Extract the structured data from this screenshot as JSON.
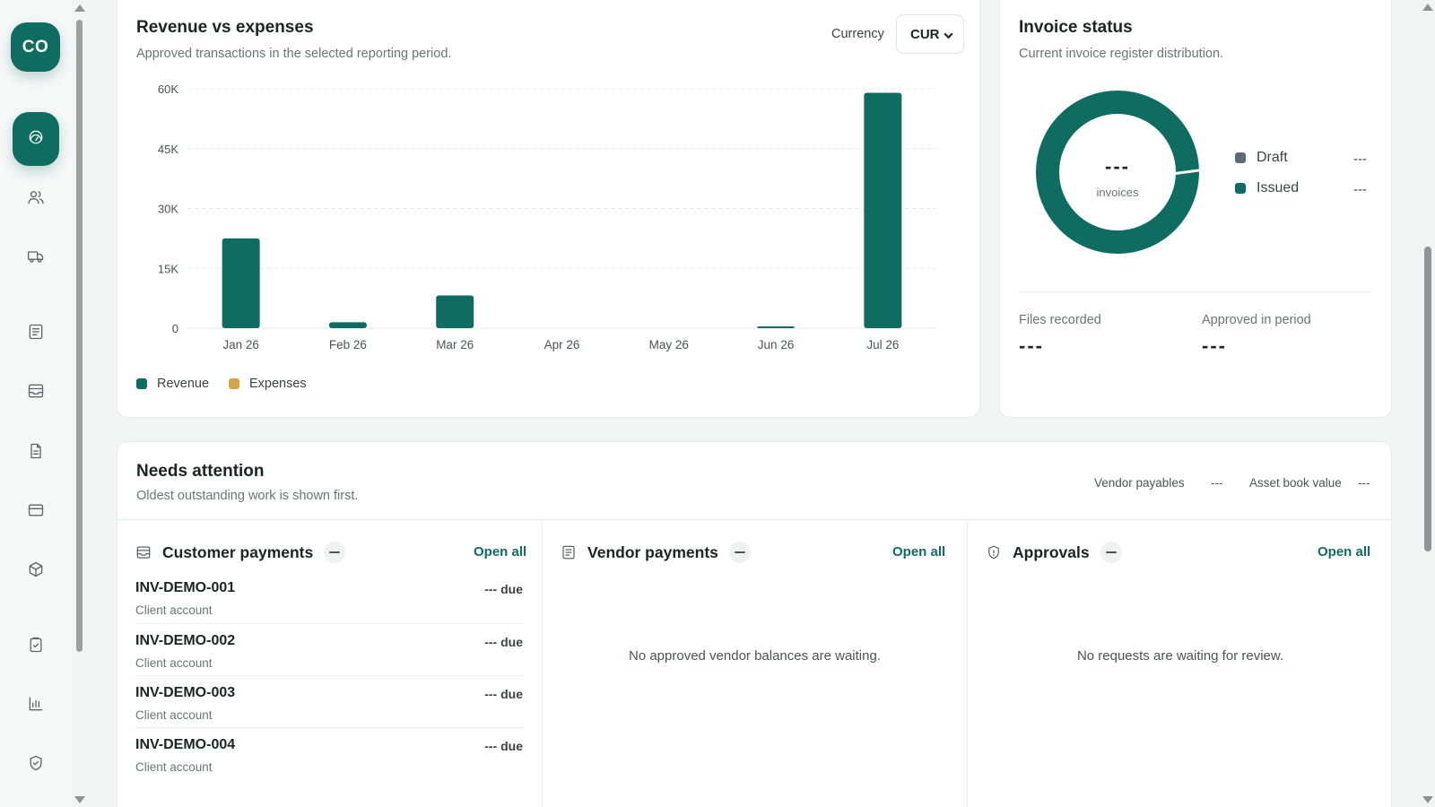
{
  "nav": {
    "brand": "CO",
    "items": [
      {
        "icon": "speedometer-icon",
        "active": true
      },
      {
        "icon": "users-icon",
        "active": false
      },
      {
        "icon": "truck-icon",
        "active": false
      },
      {
        "icon": "ledger-icon",
        "active": false
      },
      {
        "icon": "inbox-icon",
        "active": false
      },
      {
        "icon": "document-icon",
        "active": false
      },
      {
        "icon": "card-icon",
        "active": false
      },
      {
        "icon": "package-icon",
        "active": false
      },
      {
        "icon": "clipboard-check-icon",
        "active": false
      },
      {
        "icon": "bar-chart-icon",
        "active": false
      },
      {
        "icon": "shield-check-icon",
        "active": false
      }
    ]
  },
  "revenue": {
    "title": "Revenue vs expenses",
    "subtitle": "Approved transactions in the selected reporting period.",
    "currency_label": "Currency",
    "currency_value": "CUR",
    "legend": [
      {
        "label": "Revenue",
        "color": "#0f6c61"
      },
      {
        "label": "Expenses",
        "color": "#d6a548"
      }
    ]
  },
  "chart_data": {
    "type": "bar",
    "categories": [
      "Jan 26",
      "Feb 26",
      "Mar 26",
      "Apr 26",
      "May 26",
      "Jun 26",
      "Jul 26"
    ],
    "series": [
      {
        "name": "Revenue",
        "color": "#0f6c61",
        "values": [
          22500,
          1500,
          8200,
          0,
          0,
          400,
          59000
        ]
      },
      {
        "name": "Expenses",
        "color": "#d6a548",
        "values": [
          0,
          0,
          0,
          0,
          0,
          0,
          0
        ]
      }
    ],
    "yticks": [
      "0",
      "15K",
      "30K",
      "45K",
      "60K"
    ],
    "ylim": [
      0,
      60000
    ],
    "grid": true,
    "legend_position": "bottom-left"
  },
  "invoice": {
    "title": "Invoice status",
    "subtitle": "Current invoice register distribution.",
    "center_value": "---",
    "center_label": "invoices",
    "legend": [
      {
        "label": "Draft",
        "value": "---",
        "color": "#5f6a78"
      },
      {
        "label": "Issued",
        "value": "---",
        "color": "#0f6c61"
      }
    ],
    "files_recorded_label": "Files recorded",
    "files_recorded_value": "---",
    "approved_label": "Approved in period",
    "approved_value": "---"
  },
  "attention": {
    "title": "Needs attention",
    "subtitle": "Oldest outstanding work is shown first.",
    "vendor_payables_label": "Vendor payables",
    "vendor_payables_value": "---",
    "asset_book_label": "Asset book value",
    "asset_book_value": "---",
    "customer": {
      "title": "Customer payments",
      "open_all": "Open all",
      "rows": [
        {
          "id": "INV-DEMO-001",
          "sub": "Client account",
          "due": "--- due"
        },
        {
          "id": "INV-DEMO-002",
          "sub": "Client account",
          "due": "--- due"
        },
        {
          "id": "INV-DEMO-003",
          "sub": "Client account",
          "due": "--- due"
        },
        {
          "id": "INV-DEMO-004",
          "sub": "Client account",
          "due": "--- due"
        }
      ]
    },
    "vendor": {
      "title": "Vendor payments",
      "open_all": "Open all",
      "empty": "No approved vendor balances are waiting."
    },
    "approvals": {
      "title": "Approvals",
      "open_all": "Open all",
      "empty": "No requests are waiting for review."
    }
  }
}
